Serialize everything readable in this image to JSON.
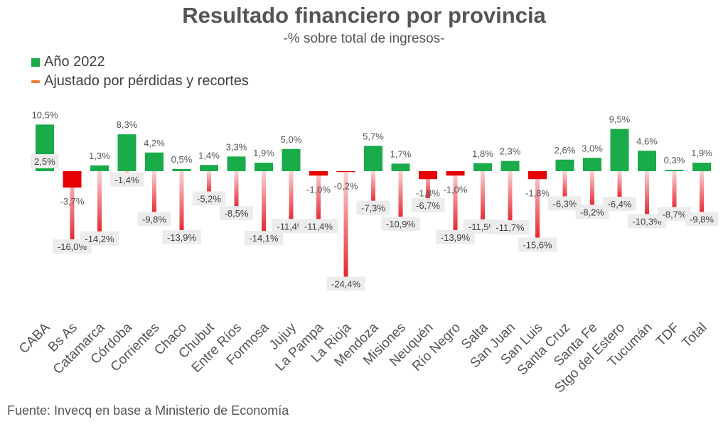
{
  "header": {
    "title": "Resultado financiero por provincia",
    "subtitle": "-% sobre total de ingresos-"
  },
  "footer": {
    "source": "Fuente: Invecq en base a Ministerio de Economía"
  },
  "colors": {
    "positive": "#1aab4b",
    "negative": "#e60000",
    "adjusted_gradient_top": "#f8d5d5",
    "adjusted_gradient_bottom": "#e8202a",
    "legend_adjusted": "#ed7d31",
    "label_box": "#ececec"
  },
  "chart_data": {
    "type": "bar",
    "legend": {
      "placement": "top-left"
    },
    "categories": [
      "CABA",
      "Bs As",
      "Catamarca",
      "Córdoba",
      "Corrientes",
      "Chaco",
      "Chubut",
      "Entre Ríos",
      "Formosa",
      "Jujuy",
      "La Pampa",
      "La Rioja",
      "Mendoza",
      "Misiones",
      "Neuquén",
      "Río Negro",
      "Salta",
      "San Juan",
      "San Luis",
      "Santa Cruz",
      "Santa Fe",
      "Stgo del Estero",
      "Tucumán",
      "TDF",
      "Total"
    ],
    "series": [
      {
        "name": "Año 2022",
        "values": [
          10.5,
          -3.7,
          1.3,
          8.3,
          4.2,
          0.5,
          1.4,
          3.3,
          1.9,
          5.0,
          -1.0,
          -0.2,
          5.7,
          1.7,
          -1.8,
          -1.0,
          1.8,
          2.3,
          -1.8,
          2.6,
          3.0,
          9.5,
          4.6,
          0.3,
          1.9
        ],
        "labels": [
          "10,5%",
          "-3,7%",
          "1,3%",
          "8,3%",
          "4,2%",
          "0,5%",
          "1,4%",
          "3,3%",
          "1,9%",
          "5,0%",
          "-1,0%",
          "-0,2%",
          "5,7%",
          "1,7%",
          "-1,8%",
          "-1,0%",
          "1,8%",
          "2,3%",
          "-1,8%",
          "2,6%",
          "3,0%",
          "9,5%",
          "4,6%",
          "0,3%",
          "1,9%"
        ]
      },
      {
        "name": "Ajustado por pérdidas y recortes",
        "values": [
          2.5,
          -16.0,
          -14.2,
          -1.4,
          -9.8,
          -13.9,
          -5.2,
          -8.5,
          -14.1,
          -11.4,
          -11.4,
          -24.4,
          -7.3,
          -10.9,
          -6.7,
          -13.9,
          -11.5,
          -11.7,
          -15.6,
          -6.3,
          -8.2,
          -6.4,
          -10.3,
          -8.7,
          -9.8
        ],
        "labels": [
          "2,5%",
          "-16,0%",
          "-14,2%",
          "-1,4%",
          "-9,8%",
          "-13,9%",
          "-5,2%",
          "-8,5%",
          "-14,1%",
          "-11,4%",
          "-11,4%",
          "-24,4%",
          "-7,3%",
          "-10,9%",
          "-6,7%",
          "-13,9%",
          "-11,5%",
          "-11,7%",
          "-15,6%",
          "-6,3%",
          "-8,2%",
          "-6,4%",
          "-10,3%",
          "-8,7%",
          "-9,8%"
        ]
      }
    ],
    "xlabel": "",
    "ylabel": "",
    "ylim": [
      -25,
      11
    ],
    "grid": false
  }
}
